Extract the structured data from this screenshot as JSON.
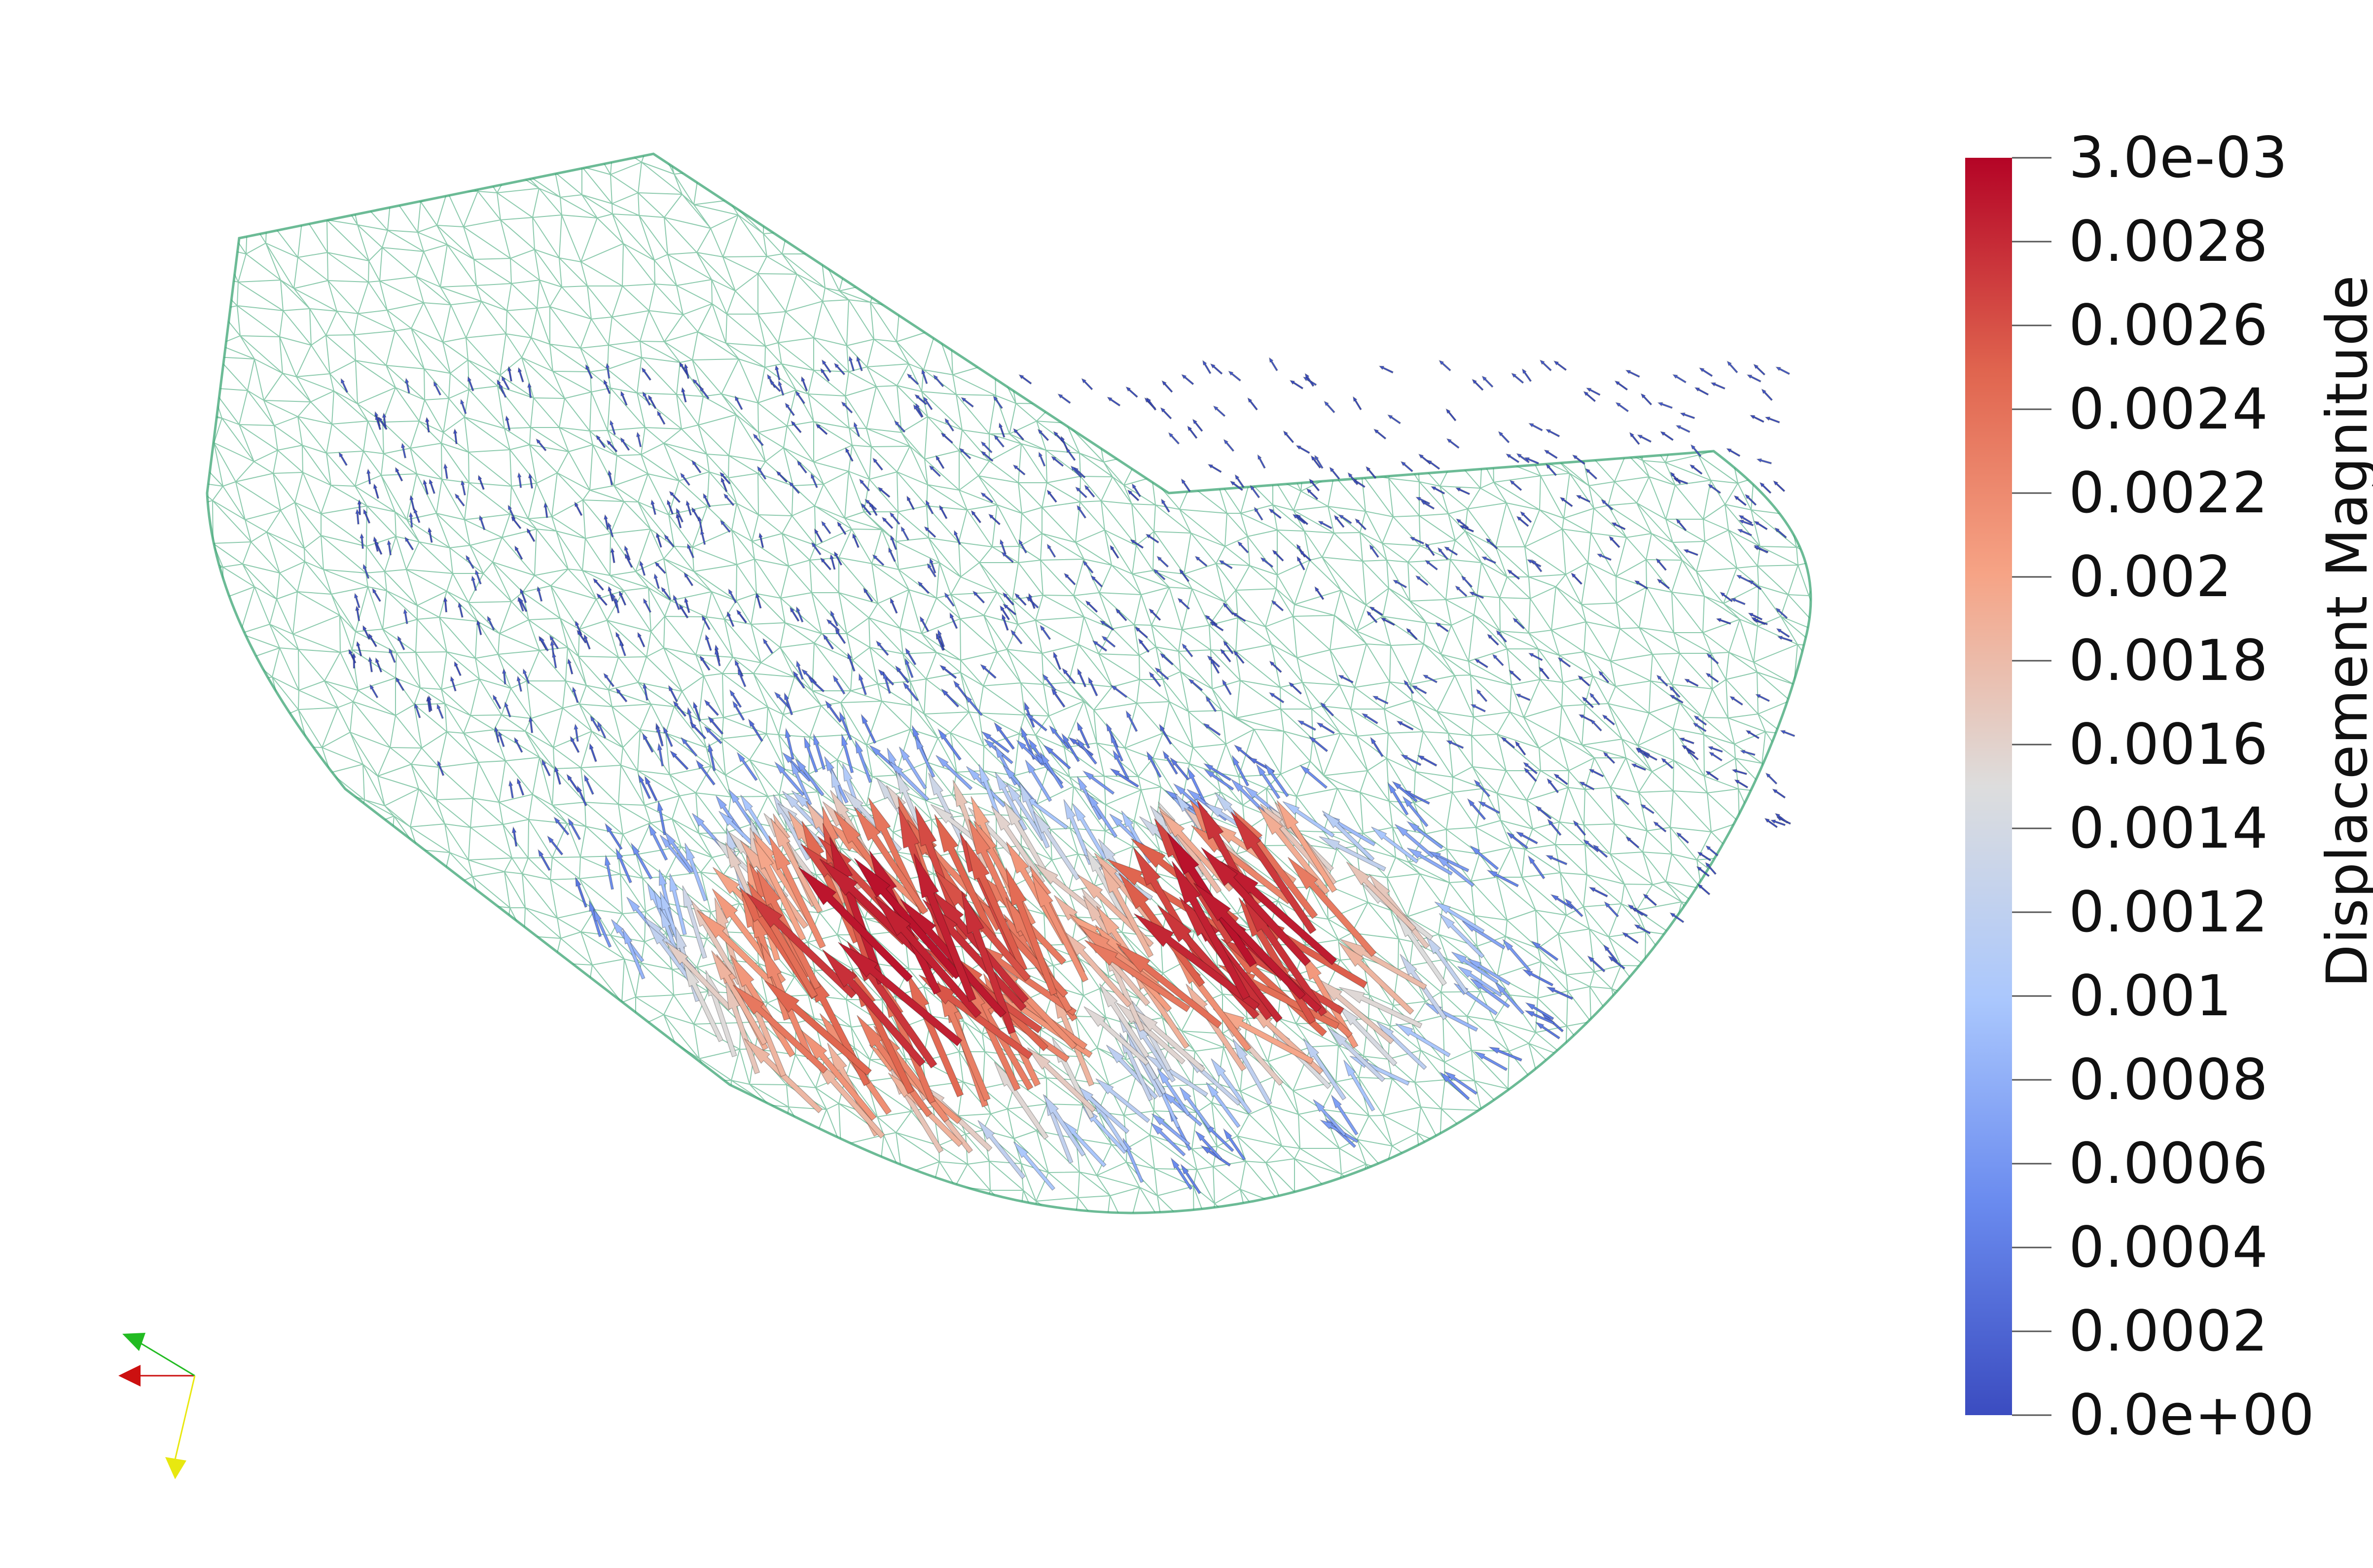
{
  "scalar_bar": {
    "title": "Displacement Magnitude",
    "min_label": "0.0e+00",
    "max_label": "3.0e-03",
    "range": [
      0,
      0.003
    ],
    "ticks": [
      {
        "value": 0.003,
        "label": "3.0e-03"
      },
      {
        "value": 0.0028,
        "label": "0.0028"
      },
      {
        "value": 0.0026,
        "label": "0.0026"
      },
      {
        "value": 0.0024,
        "label": "0.0024"
      },
      {
        "value": 0.0022,
        "label": "0.0022"
      },
      {
        "value": 0.002,
        "label": "0.002"
      },
      {
        "value": 0.0018,
        "label": "0.0018"
      },
      {
        "value": 0.0016,
        "label": "0.0016"
      },
      {
        "value": 0.0014,
        "label": "0.0014"
      },
      {
        "value": 0.0012,
        "label": "0.0012"
      },
      {
        "value": 0.001,
        "label": "0.001"
      },
      {
        "value": 0.0008,
        "label": "0.0008"
      },
      {
        "value": 0.0006,
        "label": "0.0006"
      },
      {
        "value": 0.0004,
        "label": "0.0004"
      },
      {
        "value": 0.0002,
        "label": "0.0002"
      },
      {
        "value": 0,
        "label": "0.0e+00"
      }
    ],
    "colormap": [
      "#3b4cc0",
      "#6a8bef",
      "#aac7fd",
      "#dddddd",
      "#f6a385",
      "#e0654f",
      "#b40426"
    ]
  },
  "mesh": {
    "color": "#2e9e6a"
  },
  "orientation_axes": {
    "x_color": "#cc1010",
    "y_color": "#22bb22",
    "z_color": "#e8e810"
  }
}
